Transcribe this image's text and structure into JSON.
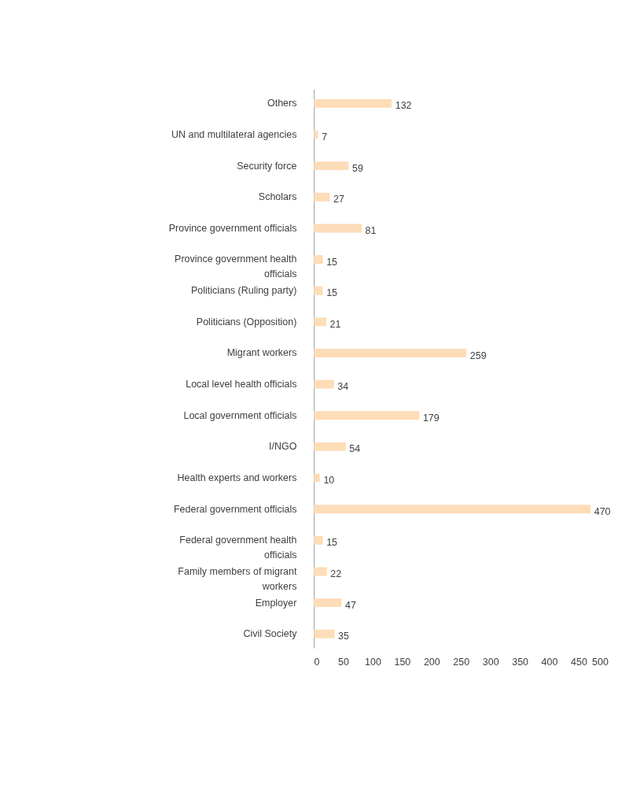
{
  "chart_data": {
    "type": "bar",
    "orientation": "horizontal",
    "categories": [
      "Others",
      "UN and multilateral agencies",
      "Security force",
      "Scholars",
      "Province government officials",
      "Province government health officials",
      "Politicians (Ruling party)",
      "Politicians (Opposition)",
      "Migrant workers",
      "Local level health officials",
      "Local government officials",
      "I/NGO",
      "Health experts and workers",
      "Federal government officials",
      "Federal government health officials",
      "Family members of migrant workers",
      "Employer",
      "Civil Society"
    ],
    "values": [
      132,
      7,
      59,
      27,
      81,
      15,
      15,
      21,
      259,
      34,
      179,
      54,
      10,
      470,
      15,
      22,
      47,
      35
    ],
    "color": "#fddcb8",
    "xlim": [
      0,
      500
    ],
    "xticks": [
      0,
      50,
      100,
      150,
      200,
      250,
      300,
      350,
      400,
      450,
      500
    ],
    "data_labels": true
  }
}
